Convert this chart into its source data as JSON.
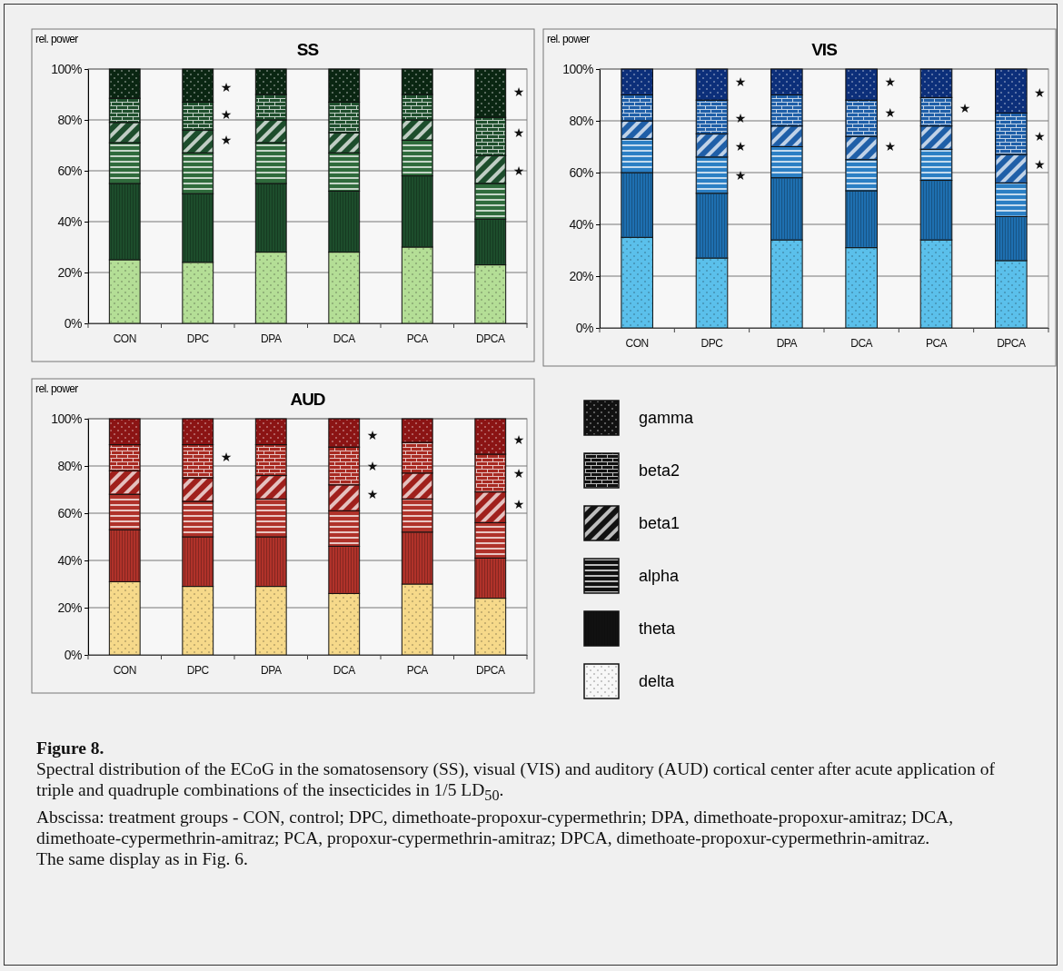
{
  "chart_data": [
    {
      "type": "bar",
      "stacked": true,
      "title": "SS",
      "ylabel": "rel. power",
      "categories": [
        "CON",
        "DPC",
        "DPA",
        "DCA",
        "PCA",
        "DPCA"
      ],
      "ylim": [
        0,
        100
      ],
      "yticks": [
        {
          "value": 0,
          "label": "0%"
        },
        {
          "value": 20,
          "label": "20%"
        },
        {
          "value": 40,
          "label": "40%"
        },
        {
          "value": 60,
          "label": "60%"
        },
        {
          "value": 80,
          "label": "80%"
        },
        {
          "value": 100,
          "label": "100%"
        }
      ],
      "grid": "y",
      "series": [
        {
          "color": "#b4de96",
          "values": [
            25,
            24,
            28,
            28,
            30,
            23
          ]
        },
        {
          "color": "#1d4d2c",
          "values": [
            30,
            27,
            27,
            24,
            28,
            18
          ]
        },
        {
          "color": "#2f6b3c",
          "values": [
            16,
            16,
            16,
            15,
            14,
            14
          ]
        },
        {
          "color": "#1d4d2c",
          "values": [
            8,
            9,
            9,
            8,
            8,
            11
          ]
        },
        {
          "color": "#1f4f2d",
          "values": [
            9.5,
            11,
            10,
            12,
            10,
            15
          ]
        },
        {
          "color": "#0a2612",
          "values": [
            11.5,
            13,
            10,
            13,
            10,
            19
          ]
        }
      ],
      "annotations": [
        "★",
        "★",
        "★",
        "★",
        "★",
        "★"
      ]
    },
    {
      "type": "bar",
      "stacked": true,
      "title": "VIS",
      "ylabel": "rel. power",
      "categories": [
        "CON",
        "DPC",
        "DPA",
        "DCA",
        "PCA",
        "DPCA"
      ],
      "ylim": [
        0,
        100
      ],
      "yticks": [
        {
          "value": 0,
          "label": "0%"
        },
        {
          "value": 20,
          "label": "20%"
        },
        {
          "value": 40,
          "label": "40%"
        },
        {
          "value": 60,
          "label": "60%"
        },
        {
          "value": 80,
          "label": "80%"
        },
        {
          "value": 100,
          "label": "100%"
        }
      ],
      "grid": "y",
      "series": [
        {
          "color": "#5bc0eb",
          "values": [
            35,
            27,
            34,
            31,
            34,
            26
          ]
        },
        {
          "color": "#1e6fb0",
          "values": [
            25,
            25,
            24,
            22,
            23,
            17
          ]
        },
        {
          "color": "#2b7fc4",
          "values": [
            13,
            14,
            12,
            12,
            12,
            13
          ]
        },
        {
          "color": "#1f5fa8",
          "values": [
            7,
            9,
            8,
            9,
            9,
            11
          ]
        },
        {
          "color": "#1f5fa8",
          "values": [
            10,
            13,
            12,
            14,
            11,
            16
          ]
        },
        {
          "color": "#0c2f7a",
          "values": [
            10,
            12,
            10,
            12,
            11,
            17
          ]
        }
      ],
      "annotations": [
        "★",
        "★",
        "★",
        "★",
        "★",
        "★",
        "★",
        "★",
        "★",
        "★",
        "★"
      ]
    },
    {
      "type": "bar",
      "stacked": true,
      "title": "AUD",
      "ylabel": "rel. power",
      "categories": [
        "CON",
        "DPC",
        "DPA",
        "DCA",
        "PCA",
        "DPCA"
      ],
      "ylim": [
        0,
        100
      ],
      "yticks": [
        {
          "value": 0,
          "label": "0%"
        },
        {
          "value": 20,
          "label": "20%"
        },
        {
          "value": 40,
          "label": "40%"
        },
        {
          "value": 60,
          "label": "60%"
        },
        {
          "value": 80,
          "label": "80%"
        },
        {
          "value": 100,
          "label": "100%"
        }
      ],
      "grid": "y",
      "legend": "right",
      "series": [
        {
          "name": "delta",
          "color": "#f6d98a",
          "values": [
            31,
            29,
            29,
            26,
            30,
            24
          ]
        },
        {
          "name": "theta",
          "color": "#b0322a",
          "values": [
            22,
            21,
            21,
            20,
            22,
            17
          ]
        },
        {
          "name": "alpha",
          "color": "#b0322a",
          "values": [
            15,
            15,
            16,
            15,
            14,
            15
          ]
        },
        {
          "name": "beta1",
          "color": "#a0201c",
          "values": [
            10,
            10,
            10,
            11,
            11,
            13
          ]
        },
        {
          "name": "beta2",
          "color": "#a82a22",
          "values": [
            11,
            14,
            13,
            16,
            13,
            16
          ]
        },
        {
          "name": "gamma",
          "color": "#8b1414",
          "values": [
            11,
            11,
            11,
            12,
            10,
            15
          ]
        }
      ],
      "annotations": [
        "★",
        "★",
        "★",
        "★",
        "★",
        "★",
        "★",
        "Figure 8.",
        "Spectral distribution of the ECoG in the somatosensory (SS), visual (VIS) and auditory (AUD) cortical center after acute application of triple and quadruple combinations of the insecticides in 1/5 LD$_{50}$.",
        "Abscissa: treatment groups - CON, control; DPC, dimethoate-propoxur-cypermethrin; DPA, dimethoate-propoxur-amitraz; DCA, dimethoate-cypermethrin-amitraz; PCA, propoxur-cypermethrin-amitraz; DPCA, dimethoate-propoxur-cypermethrin-amitraz.",
        "The same display as in Fig. 6."
      ]
    }
  ]
}
